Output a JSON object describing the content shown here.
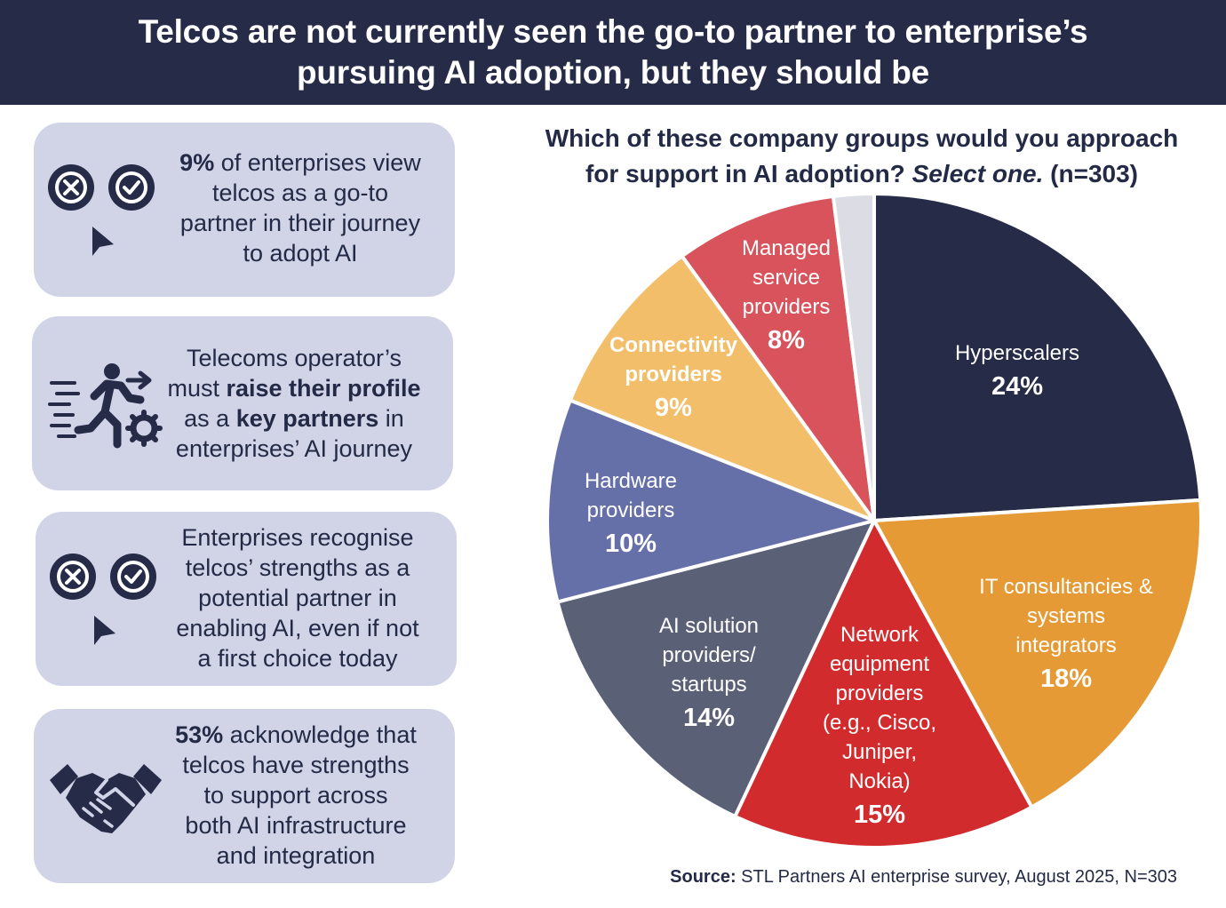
{
  "header": {
    "title_line1": "Telcos are not currently seen the go-to partner to enterprise’s",
    "title_line2": "pursuing AI adoption, but they should be"
  },
  "cards": [
    {
      "icon": "x-check-cursor-icon",
      "lines": [
        [
          "9%",
          " of enterprises view"
        ],
        [
          "",
          "telcos as a go-to"
        ],
        [
          "",
          "partner in their journey"
        ],
        [
          "",
          "to adopt AI"
        ]
      ]
    },
    {
      "icon": "running-person-gear-icon",
      "lines": [
        [
          "",
          "Telecoms operator’s"
        ],
        [
          "",
          "must |raise their profile"
        ],
        [
          "",
          "as a |key partners| in"
        ],
        [
          "",
          "enterprises’ AI journey"
        ]
      ]
    },
    {
      "icon": "x-check-cursor-icon",
      "lines": [
        [
          "",
          "Enterprises recognise"
        ],
        [
          "",
          "telcos’ strengths as a"
        ],
        [
          "",
          "potential partner in"
        ],
        [
          "",
          "enabling AI, even if not"
        ],
        [
          "",
          "a first choice today"
        ]
      ]
    },
    {
      "icon": "handshake-icon",
      "lines": [
        [
          "53%",
          " acknowledge that"
        ],
        [
          "",
          "telcos have strengths"
        ],
        [
          "",
          "to support across"
        ],
        [
          "",
          "both AI infrastructure"
        ],
        [
          "",
          "and integration"
        ]
      ]
    }
  ],
  "chart_title": {
    "line1": "Which of these company groups would you approach",
    "line2_pre": "for support in AI adoption? ",
    "line2_italic": "Select one.",
    "line2_post": " (n=303)"
  },
  "source": {
    "label": "Source:",
    "text": " STL Partners AI enterprise survey, August 2025, N=303"
  },
  "chart_data": {
    "type": "pie",
    "title": "Which of these company groups would you approach for support in AI adoption? Select one. (n=303)",
    "slices": [
      {
        "label": "Hyperscalers",
        "value": 24,
        "value_label": "24%",
        "color": "#262b48",
        "text_color": "#ffffff"
      },
      {
        "label": "IT consultancies & systems integrators",
        "value": 18,
        "value_label": "18%",
        "color": "#e59a36",
        "text_color": "#ffffff"
      },
      {
        "label": "Network equipment providers (e.g., Cisco, Juniper, Nokia)",
        "value": 15,
        "value_label": "15%",
        "color": "#d12b2e",
        "text_color": "#ffffff"
      },
      {
        "label": "AI solution providers/ startups",
        "value": 14,
        "value_label": "14%",
        "color": "#5a6076",
        "text_color": "#ffffff"
      },
      {
        "label": "Hardware providers",
        "value": 10,
        "value_label": "10%",
        "color": "#6670a8",
        "text_color": "#ffffff"
      },
      {
        "label": "Connectivity providers",
        "value": 9,
        "value_label": "9%",
        "color": "#f2be6a",
        "text_color": "#ffffff"
      },
      {
        "label": "Managed service providers",
        "value": 8,
        "value_label": "8%",
        "color": "#d9535c",
        "text_color": "#ffffff"
      },
      {
        "label": "",
        "value": 2,
        "value_label": "",
        "color": "#dcdde4",
        "text_color": "#ffffff"
      }
    ]
  }
}
